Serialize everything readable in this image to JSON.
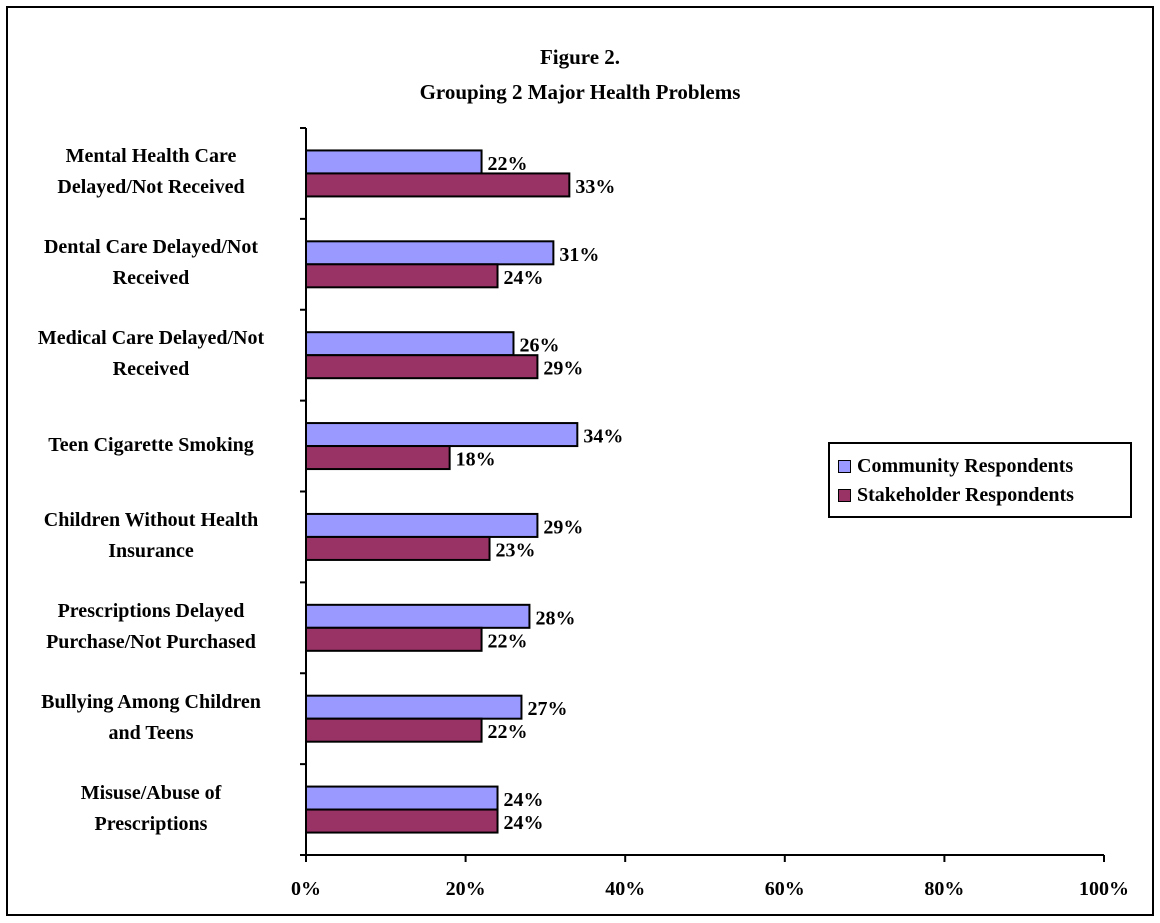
{
  "chart_data": {
    "type": "bar",
    "orientation": "horizontal",
    "title": "Figure 2.",
    "subtitle": "Grouping 2 Major Health Problems",
    "categories": [
      [
        "Mental Health Care",
        "Delayed/Not Received"
      ],
      [
        "Dental Care Delayed/Not",
        "Received"
      ],
      [
        "Medical Care Delayed/Not",
        "Received"
      ],
      [
        "Teen Cigarette Smoking"
      ],
      [
        "Children Without Health",
        "Insurance"
      ],
      [
        "Prescriptions Delayed",
        "Purchase/Not Purchased"
      ],
      [
        "Bullying Among Children",
        "and Teens"
      ],
      [
        "Misuse/Abuse of",
        "Prescriptions"
      ]
    ],
    "series": [
      {
        "name": "Community Respondents",
        "color": "#9999ff",
        "values": [
          22,
          31,
          26,
          34,
          29,
          28,
          27,
          24
        ],
        "labels": [
          "22%",
          "31%",
          "26%",
          "34%",
          "29%",
          "28%",
          "27%",
          "24%"
        ]
      },
      {
        "name": "Stakeholder Respondents",
        "color": "#993366",
        "values": [
          33,
          24,
          29,
          18,
          23,
          22,
          22,
          24
        ],
        "labels": [
          "33%",
          "24%",
          "29%",
          "18%",
          "23%",
          "22%",
          "22%",
          "24%"
        ]
      }
    ],
    "xlim": [
      0,
      100
    ],
    "xticks": [
      0,
      20,
      40,
      60,
      80,
      100
    ],
    "xtick_labels": [
      "0%",
      "20%",
      "40%",
      "60%",
      "80%",
      "100%"
    ],
    "grid": false,
    "legend_position": "right"
  }
}
